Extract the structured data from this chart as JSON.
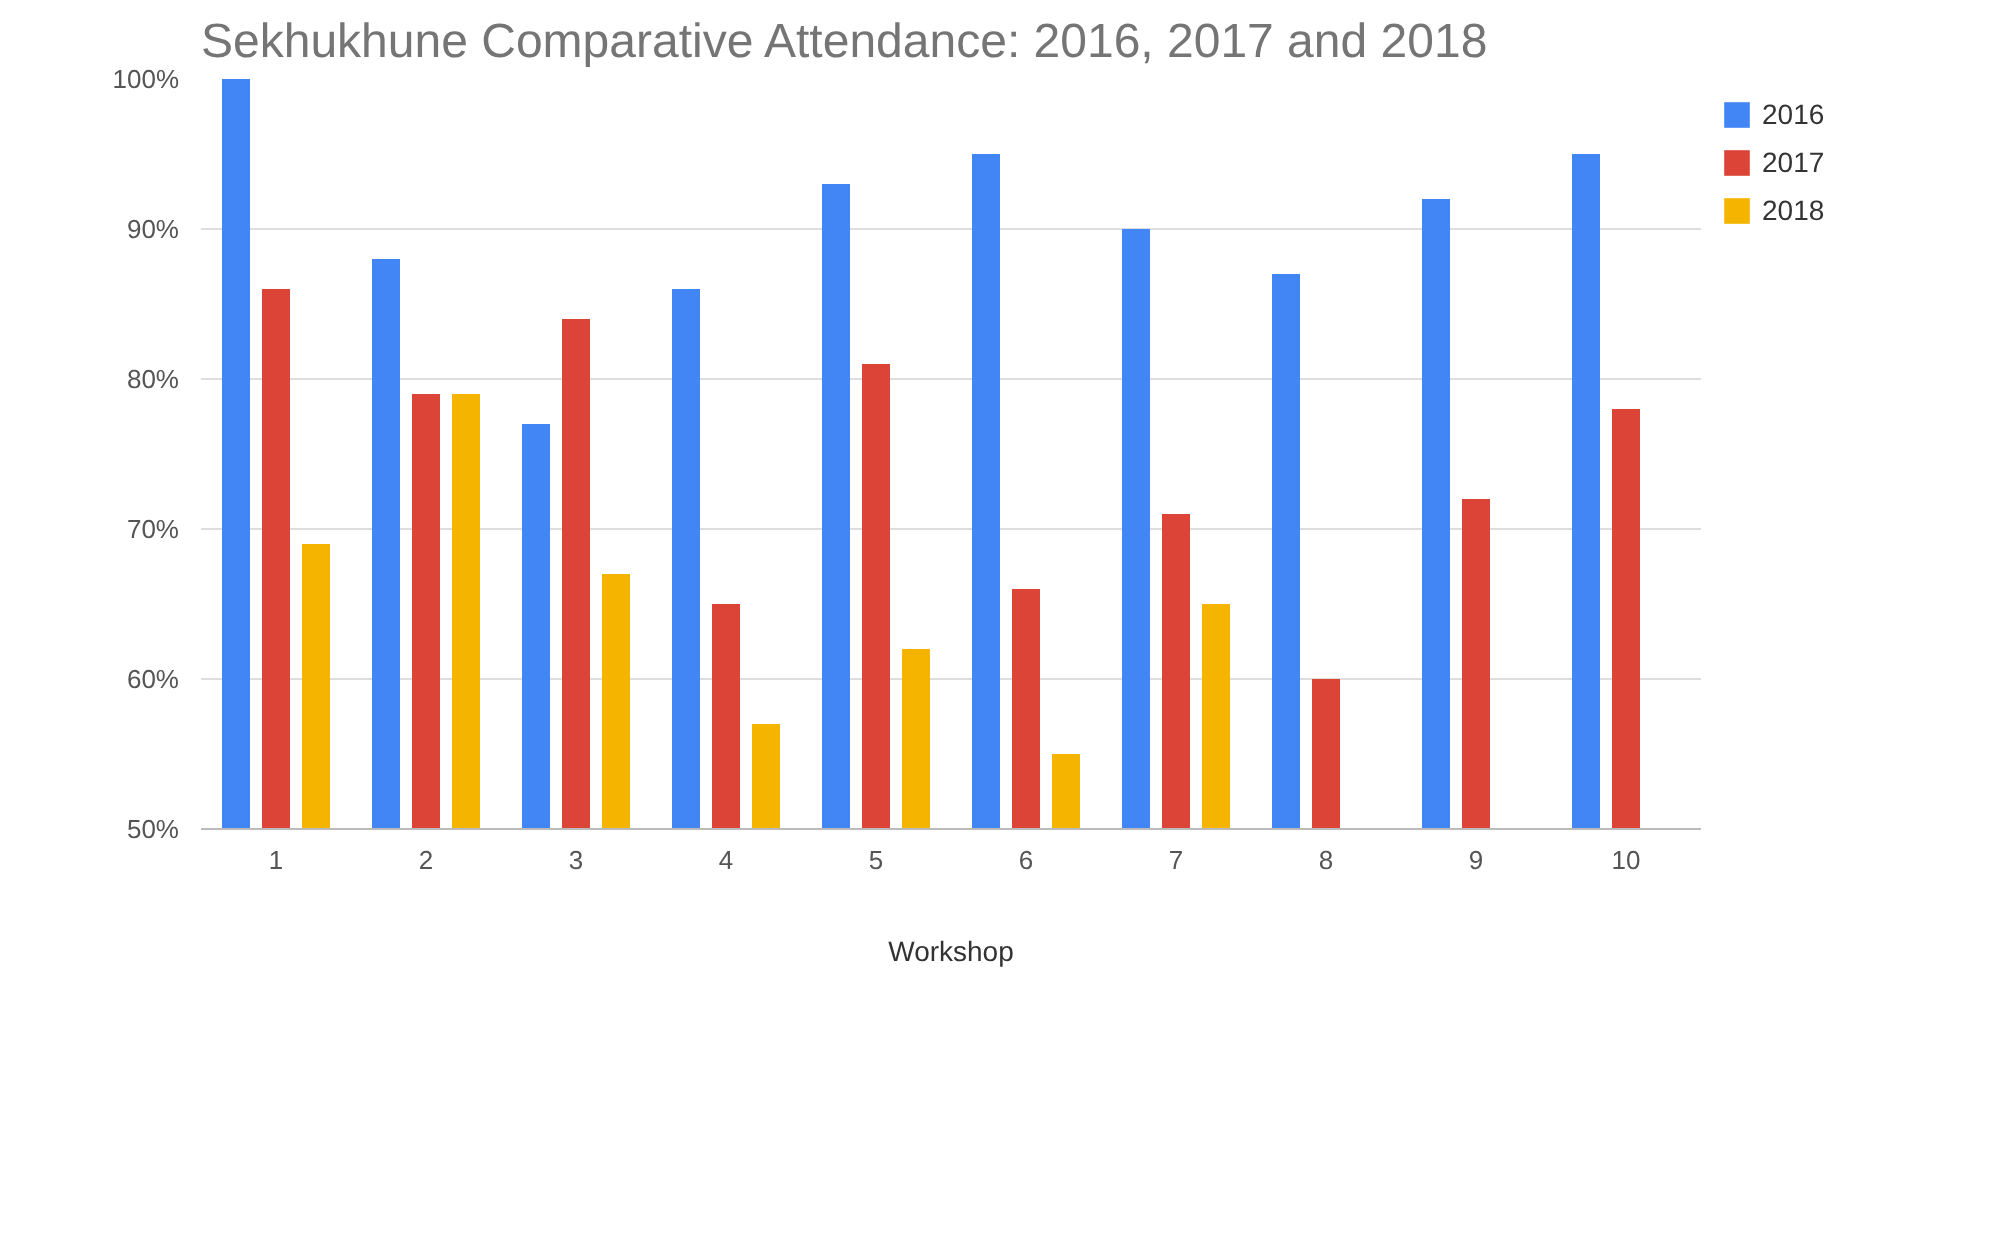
{
  "chart_data": {
    "type": "bar",
    "title": "Sekhukhune Comparative Attendance: 2016, 2017 and 2018",
    "xlabel": "Workshop",
    "categories": [
      "1",
      "2",
      "3",
      "4",
      "5",
      "6",
      "7",
      "8",
      "9",
      "10"
    ],
    "series": [
      {
        "name": "2016",
        "color": "#4285f4",
        "values": [
          100,
          88,
          77,
          86,
          93,
          95,
          90,
          87,
          92,
          95
        ]
      },
      {
        "name": "2017",
        "color": "#db4437",
        "values": [
          86,
          79,
          84,
          65,
          81,
          66,
          71,
          60,
          72,
          78
        ]
      },
      {
        "name": "2018",
        "color": "#f4b400",
        "values": [
          69,
          79,
          67,
          57,
          62,
          55,
          65,
          null,
          null,
          null
        ]
      }
    ],
    "ylim": [
      50,
      100
    ],
    "yticks": [
      {
        "value": 50,
        "label": "50%"
      },
      {
        "value": 60,
        "label": "60%"
      },
      {
        "value": 70,
        "label": "70%"
      },
      {
        "value": 80,
        "label": "80%"
      },
      {
        "value": 90,
        "label": "90%"
      },
      {
        "value": 100,
        "label": "100%"
      }
    ],
    "grid": "y",
    "legend": "top right"
  }
}
